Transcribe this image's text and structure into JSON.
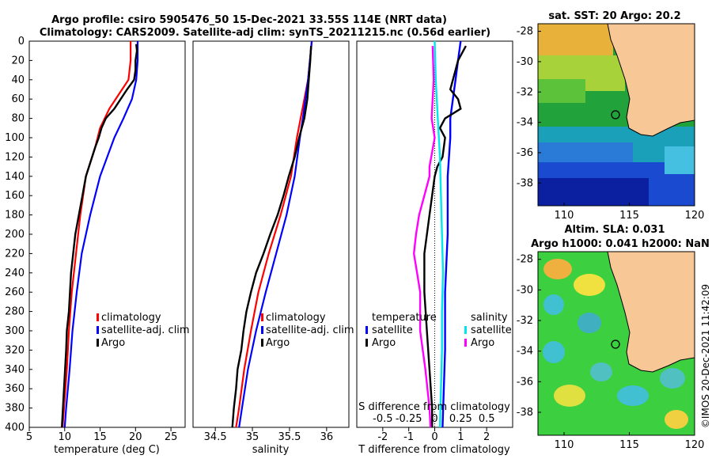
{
  "title": {
    "line1": "Argo profile: csiro 5905476_50 15-Dec-2021 33.55S 114E (NRT data)",
    "line2": "Climatology: CARS2009. Satellite-adj clim: synTS_20211215.nc (0.56d earlier)"
  },
  "timestamp": "©IMOS 20-Dec-2021 11:42:09",
  "colors": {
    "climatology": "#ff0000",
    "satellite": "#0000ff",
    "argo": "#000000",
    "sat_salinity": "#00e5ee",
    "argo_salinity": "#ff00ff"
  },
  "chart_data": [
    {
      "type": "line",
      "name": "temperature-profile",
      "xlabel": "temperature (deg C)",
      "ylabel": "",
      "xlim": [
        5,
        27
      ],
      "ylim": [
        400,
        0
      ],
      "xticks": [
        "5",
        "10",
        "15",
        "20",
        "25"
      ],
      "yticks": [
        "0",
        "20",
        "40",
        "60",
        "80",
        "100",
        "120",
        "140",
        "160",
        "180",
        "200",
        "220",
        "240",
        "260",
        "280",
        "300",
        "320",
        "340",
        "360",
        "380",
        "400"
      ],
      "legend": [
        "climatology",
        "satellite-adj. clim",
        "Argo"
      ],
      "series": [
        {
          "name": "climatology",
          "depth": [
            0,
            10,
            20,
            40,
            50,
            70,
            90,
            110,
            140,
            180,
            220,
            260,
            300,
            340,
            380,
            400
          ],
          "values": [
            19.3,
            19.3,
            19.3,
            19.0,
            18.1,
            16.3,
            15.0,
            14.3,
            13.0,
            12.2,
            11.6,
            11.0,
            10.6,
            10.3,
            9.9,
            9.7
          ]
        },
        {
          "name": "satellite-adj. clim",
          "depth": [
            0,
            10,
            20,
            40,
            60,
            80,
            100,
            140,
            180,
            220,
            260,
            300,
            340,
            380,
            400
          ],
          "values": [
            20.3,
            20.3,
            20.3,
            20.1,
            19.5,
            18.3,
            17.0,
            15.0,
            13.6,
            12.4,
            11.7,
            11.1,
            10.7,
            10.2,
            10.0
          ]
        },
        {
          "name": "Argo",
          "depth": [
            3,
            10,
            20,
            30,
            40,
            50,
            70,
            80,
            90,
            100,
            110,
            140,
            160,
            200,
            240,
            280,
            300,
            320,
            360,
            400
          ],
          "values": [
            20.1,
            20.2,
            20.0,
            20.0,
            19.8,
            18.8,
            17.0,
            15.8,
            15.2,
            14.8,
            14.3,
            13.0,
            12.5,
            11.5,
            10.9,
            10.6,
            10.3,
            10.2,
            9.9,
            9.6
          ]
        }
      ]
    },
    {
      "type": "line",
      "name": "salinity-profile",
      "xlabel": "salinity",
      "xlim": [
        34.2,
        36.3
      ],
      "ylim": [
        400,
        0
      ],
      "xticks": [
        "34.5",
        "35",
        "35.5",
        "36"
      ],
      "legend": [
        "climatology",
        "satellite-adj. clim",
        "Argo"
      ],
      "series": [
        {
          "name": "climatology",
          "depth": [
            0,
            40,
            80,
            100,
            140,
            180,
            220,
            260,
            300,
            340,
            380,
            400
          ],
          "values": [
            35.8,
            35.75,
            35.65,
            35.6,
            35.52,
            35.38,
            35.22,
            35.08,
            34.98,
            34.89,
            34.82,
            34.78
          ]
        },
        {
          "name": "satellite-adj. clim",
          "depth": [
            0,
            40,
            80,
            100,
            140,
            180,
            220,
            260,
            300,
            340,
            380,
            400
          ],
          "values": [
            35.8,
            35.75,
            35.68,
            35.64,
            35.57,
            35.46,
            35.32,
            35.18,
            35.05,
            34.94,
            34.86,
            34.82
          ]
        },
        {
          "name": "Argo",
          "depth": [
            5,
            20,
            40,
            60,
            80,
            100,
            120,
            140,
            160,
            180,
            200,
            220,
            240,
            260,
            280,
            300,
            320,
            340,
            360,
            380,
            400
          ],
          "values": [
            35.79,
            35.78,
            35.76,
            35.74,
            35.7,
            35.63,
            35.57,
            35.49,
            35.42,
            35.34,
            35.24,
            35.15,
            35.05,
            34.98,
            34.92,
            34.88,
            34.85,
            34.8,
            34.78,
            34.75,
            34.73
          ]
        }
      ]
    },
    {
      "type": "line",
      "name": "difference-profile",
      "xlabel": "T difference from climatology",
      "xlabel_top": "S difference from climatology",
      "xlim": [
        -3,
        3
      ],
      "ylim": [
        400,
        0
      ],
      "xticks": [
        "-2",
        "-1",
        "0",
        "1",
        "2"
      ],
      "xticks_top": [
        "-0.5",
        "-0.25",
        "0",
        "0.25",
        "0.5"
      ],
      "legend_temperature_title": "temperature",
      "legend_salinity_title": "salinity",
      "legend": [
        "satellite",
        "Argo",
        "satellite",
        "Argo"
      ],
      "series": [
        {
          "name": "T satellite",
          "depth": [
            0,
            20,
            40,
            60,
            80,
            100,
            140,
            200,
            260,
            320,
            360,
            400
          ],
          "values": [
            1.0,
            0.9,
            0.8,
            0.7,
            0.6,
            0.6,
            0.5,
            0.5,
            0.4,
            0.4,
            0.35,
            0.3
          ]
        },
        {
          "name": "T Argo",
          "depth": [
            5,
            10,
            20,
            30,
            50,
            60,
            70,
            80,
            90,
            100,
            120,
            130,
            140,
            180,
            220,
            260,
            300,
            340,
            380,
            400
          ],
          "values": [
            1.2,
            1.1,
            0.9,
            0.8,
            0.6,
            0.9,
            1.0,
            0.4,
            0.2,
            0.4,
            0.3,
            0.1,
            0.0,
            -0.2,
            -0.4,
            -0.4,
            -0.3,
            -0.2,
            -0.1,
            -0.1
          ]
        },
        {
          "name": "S satellite",
          "depth": [
            0,
            40,
            80,
            120,
            160,
            200,
            240,
            280,
            320,
            360,
            400
          ],
          "values": [
            0.0,
            0.01,
            0.03,
            0.05,
            0.06,
            0.07,
            0.08,
            0.07,
            0.07,
            0.06,
            0.05
          ]
        },
        {
          "name": "S Argo",
          "depth": [
            5,
            40,
            80,
            100,
            130,
            140,
            160,
            180,
            200,
            220,
            240,
            260,
            300,
            340,
            380,
            400
          ],
          "values": [
            -0.02,
            -0.01,
            -0.03,
            0.0,
            -0.05,
            -0.05,
            -0.1,
            -0.15,
            -0.18,
            -0.2,
            -0.17,
            -0.14,
            -0.14,
            -0.09,
            -0.05,
            -0.04
          ]
        }
      ]
    },
    {
      "type": "heatmap",
      "name": "sst-map",
      "title": "sat. SST: 20 Argo: 20.2",
      "xticks": [
        "110",
        "115",
        "120"
      ],
      "yticks": [
        "-28",
        "-30",
        "-32",
        "-34",
        "-36",
        "-38"
      ],
      "xlim": [
        108,
        120
      ],
      "ylim": [
        -39.5,
        -27.5
      ],
      "profile_location": {
        "lon": 114,
        "lat": -33.55
      }
    },
    {
      "type": "heatmap",
      "name": "sla-map",
      "title_line1": "Altim. SLA: 0.031",
      "title_line2": "Argo h1000: 0.041 h2000: NaN",
      "xticks": [
        "110",
        "115",
        "120"
      ],
      "yticks": [
        "-28",
        "-30",
        "-32",
        "-34",
        "-36",
        "-38"
      ],
      "xlim": [
        108,
        120
      ],
      "ylim": [
        -39.5,
        -27.5
      ],
      "profile_location": {
        "lon": 114,
        "lat": -33.55
      }
    }
  ]
}
